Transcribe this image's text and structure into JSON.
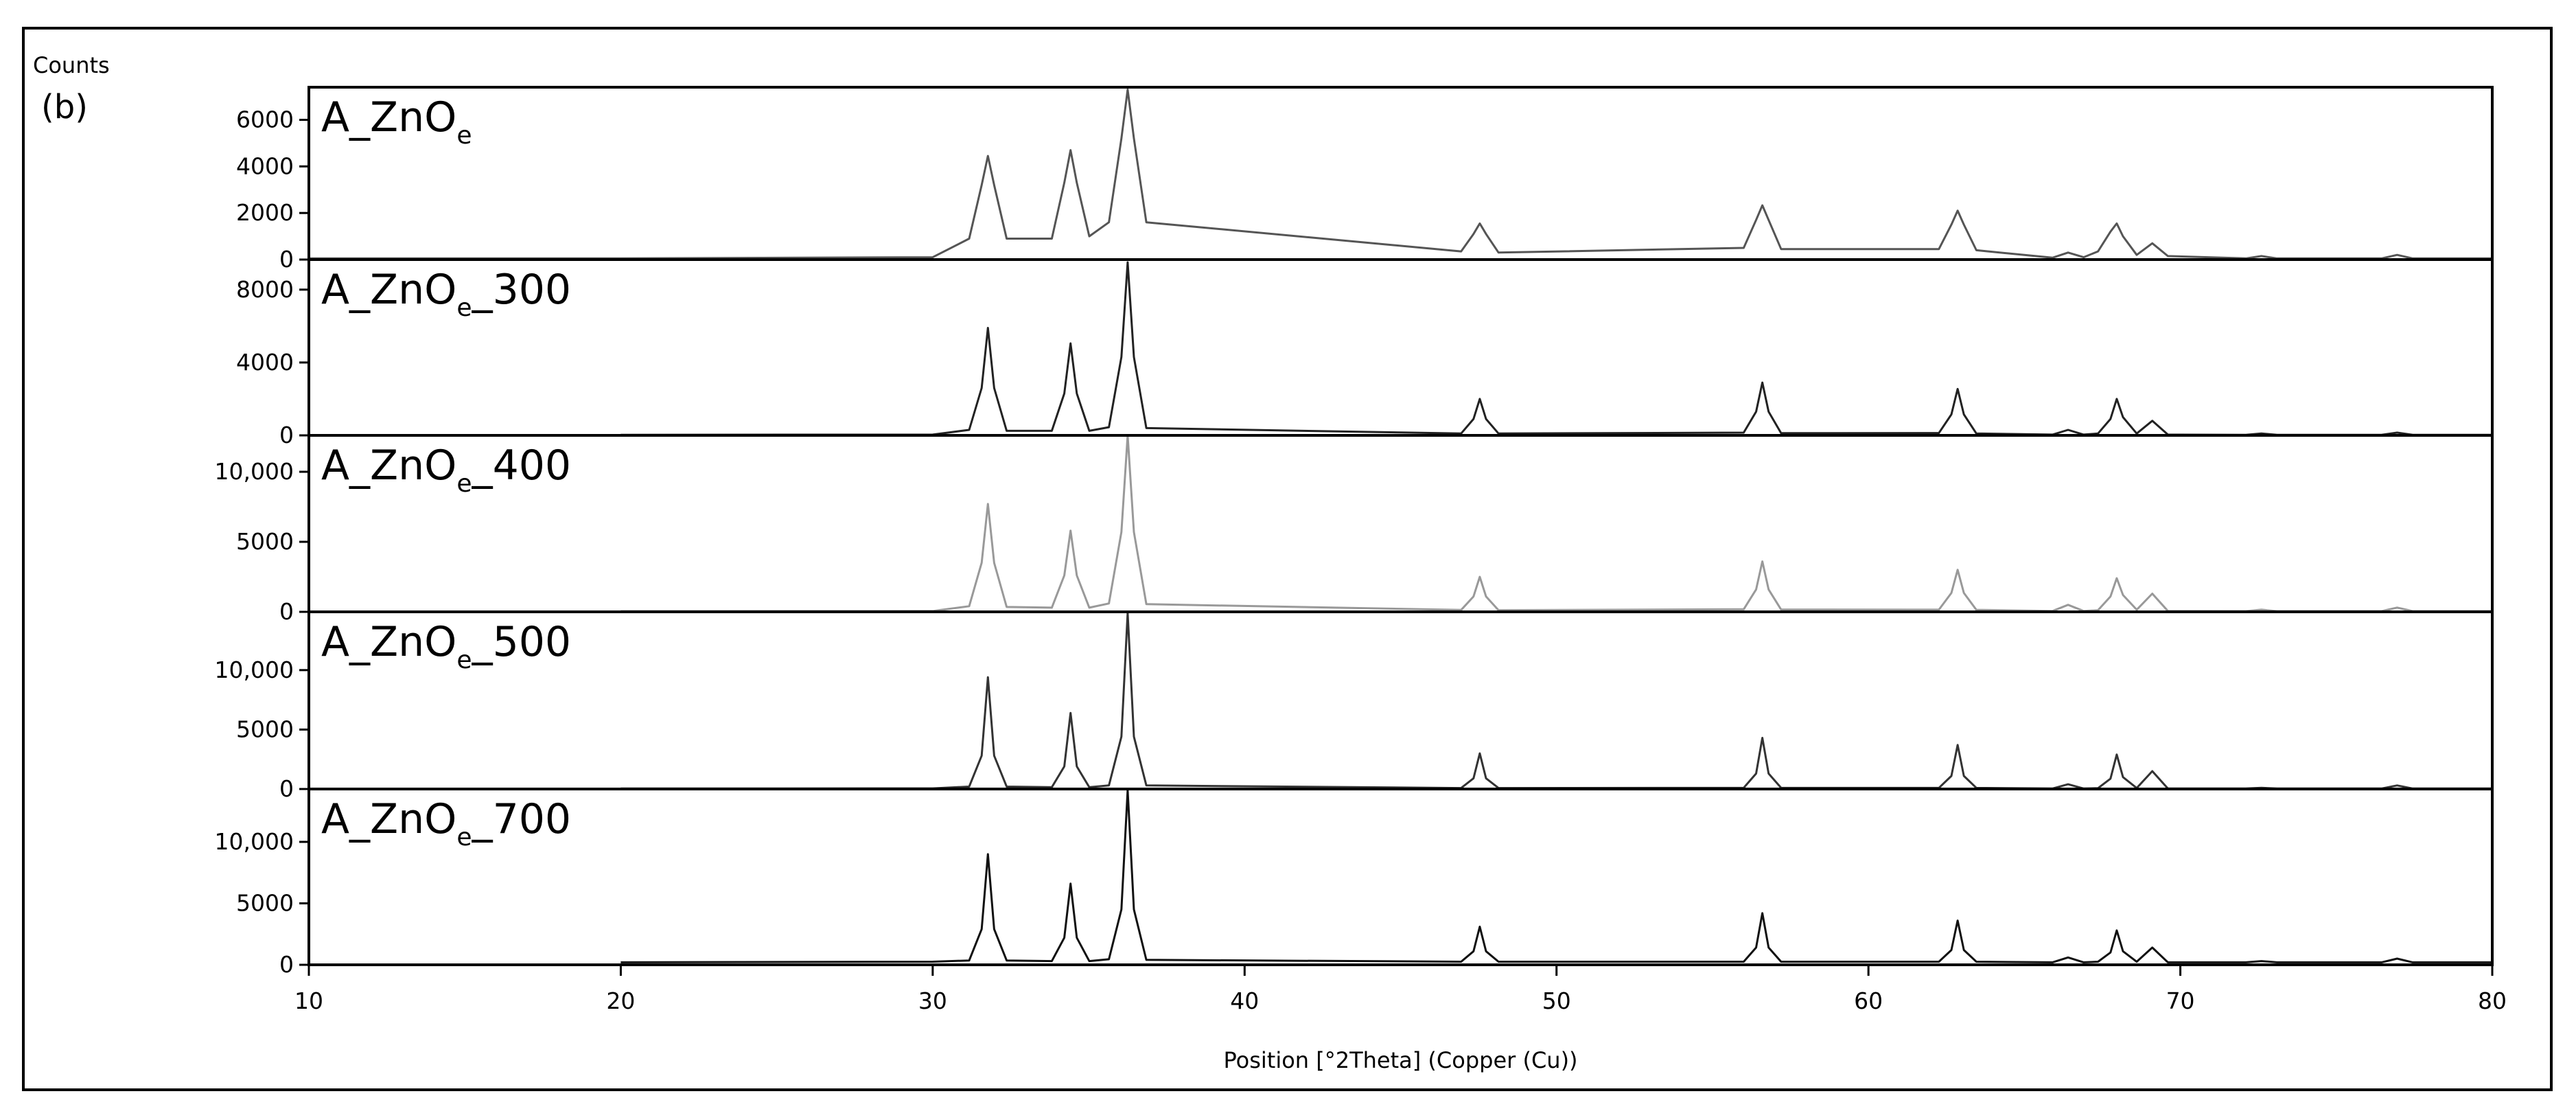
{
  "chart_data": [
    {
      "type": "line",
      "label": "A_ZnO",
      "label_sub": "e",
      "ylabel": "Counts",
      "annotation": "(b)",
      "color": "#555555",
      "xlim": [
        10,
        80
      ],
      "ylim": [
        0,
        7400
      ],
      "yticks": [
        0,
        2000,
        4000,
        6000
      ],
      "x": [
        10,
        20,
        30,
        31.17,
        31.57,
        31.77,
        31.97,
        32.37,
        33.82,
        34.22,
        34.42,
        34.62,
        35.02,
        35.65,
        36.05,
        36.25,
        36.45,
        36.85,
        46.94,
        47.34,
        47.54,
        47.74,
        48.14,
        56.0,
        56.4,
        56.6,
        56.8,
        57.2,
        62.26,
        62.66,
        62.86,
        63.06,
        63.46,
        65.9,
        66.4,
        66.9,
        67.36,
        67.76,
        67.96,
        68.16,
        68.6,
        69.1,
        69.6,
        72.1,
        72.6,
        73.1,
        76.45,
        76.95,
        77.45,
        80
      ],
      "values": [
        50,
        50,
        100,
        900,
        3200,
        4450,
        3200,
        900,
        900,
        3300,
        4700,
        3300,
        1000,
        1600,
        5200,
        7300,
        5200,
        1600,
        350,
        1100,
        1550,
        1100,
        300,
        500,
        1700,
        2330,
        1700,
        450,
        450,
        1500,
        2100,
        1500,
        400,
        80,
        300,
        100,
        350,
        1200,
        1550,
        1000,
        200,
        700,
        150,
        50,
        150,
        50,
        50,
        200,
        50,
        50
      ]
    },
    {
      "type": "line",
      "label": "A_ZnO",
      "label_sub": "e",
      "label_suffix": "_300",
      "color": "#222222",
      "xlim": [
        10,
        80
      ],
      "ylim": [
        0,
        9650
      ],
      "yticks": [
        0,
        4000,
        8000
      ],
      "x": [
        20,
        30,
        31.17,
        31.57,
        31.77,
        31.97,
        32.37,
        33.82,
        34.22,
        34.42,
        34.62,
        35.02,
        35.65,
        36.05,
        36.25,
        36.45,
        36.85,
        46.94,
        47.34,
        47.54,
        47.74,
        48.14,
        56.0,
        56.4,
        56.6,
        56.8,
        57.2,
        62.26,
        62.66,
        62.86,
        63.06,
        63.46,
        65.9,
        66.4,
        66.9,
        67.36,
        67.76,
        67.96,
        68.16,
        68.6,
        69.1,
        69.6,
        72.1,
        72.6,
        73.1,
        76.45,
        76.95,
        77.45,
        80
      ],
      "values": [
        30,
        40,
        300,
        2600,
        5900,
        2600,
        250,
        250,
        2300,
        5050,
        2300,
        250,
        450,
        4300,
        9500,
        4300,
        400,
        100,
        900,
        2000,
        900,
        100,
        150,
        1300,
        2900,
        1300,
        120,
        130,
        1150,
        2550,
        1150,
        100,
        40,
        300,
        40,
        100,
        900,
        2000,
        1000,
        100,
        800,
        40,
        30,
        100,
        30,
        30,
        150,
        30,
        30
      ]
    },
    {
      "type": "line",
      "label": "A_ZnO",
      "label_sub": "e",
      "label_suffix": "_400",
      "color": "#999999",
      "xlim": [
        10,
        80
      ],
      "ylim": [
        0,
        12600
      ],
      "yticks": [
        0,
        5000,
        {
          "value": 10000,
          "label": "10,000"
        }
      ],
      "x": [
        20,
        30,
        31.17,
        31.57,
        31.77,
        31.97,
        32.37,
        33.82,
        34.22,
        34.42,
        34.62,
        35.02,
        35.65,
        36.05,
        36.25,
        36.45,
        36.85,
        46.94,
        47.34,
        47.54,
        47.74,
        48.14,
        56.0,
        56.4,
        56.6,
        56.8,
        57.2,
        62.26,
        62.66,
        62.86,
        63.06,
        63.46,
        65.9,
        66.4,
        66.9,
        67.36,
        67.76,
        67.96,
        68.16,
        68.6,
        69.1,
        69.6,
        72.1,
        72.6,
        73.1,
        76.45,
        76.95,
        77.45,
        80
      ],
      "values": [
        50,
        60,
        400,
        3500,
        7700,
        3500,
        350,
        300,
        2600,
        5800,
        2600,
        300,
        600,
        5700,
        12600,
        5700,
        550,
        130,
        1100,
        2500,
        1100,
        120,
        180,
        1600,
        3600,
        1600,
        160,
        150,
        1350,
        3000,
        1350,
        140,
        60,
        500,
        60,
        120,
        1100,
        2400,
        1200,
        150,
        1300,
        60,
        50,
        150,
        50,
        50,
        300,
        50,
        50
      ]
    },
    {
      "type": "line",
      "label": "A_ZnO",
      "label_sub": "e",
      "label_suffix": "_500",
      "color": "#333333",
      "xlim": [
        10,
        80
      ],
      "ylim": [
        0,
        14900
      ],
      "yticks": [
        0,
        5000,
        {
          "value": 10000,
          "label": "10,000"
        }
      ],
      "x": [
        20,
        30,
        31.17,
        31.57,
        31.77,
        31.97,
        32.37,
        33.82,
        34.22,
        34.42,
        34.62,
        35.02,
        35.65,
        36.05,
        36.25,
        36.45,
        36.85,
        46.94,
        47.34,
        47.54,
        47.74,
        48.14,
        56.0,
        56.4,
        56.6,
        56.8,
        57.2,
        62.26,
        62.66,
        62.86,
        63.06,
        63.46,
        65.9,
        66.4,
        66.9,
        67.36,
        67.76,
        67.96,
        68.16,
        68.6,
        69.1,
        69.6,
        72.1,
        72.6,
        73.1,
        76.45,
        76.95,
        77.45,
        80
      ],
      "values": [
        40,
        50,
        200,
        2800,
        9400,
        2800,
        200,
        150,
        1900,
        6400,
        1900,
        150,
        300,
        4400,
        14800,
        4400,
        300,
        80,
        900,
        3000,
        900,
        80,
        100,
        1300,
        4300,
        1300,
        100,
        90,
        1100,
        3700,
        1100,
        90,
        40,
        400,
        40,
        70,
        870,
        2900,
        1000,
        80,
        1500,
        40,
        40,
        100,
        40,
        40,
        300,
        40,
        40
      ]
    },
    {
      "type": "line",
      "label": "A_ZnO",
      "label_sub": "e",
      "label_suffix": "_700",
      "color": "#111111",
      "xlabel": "Position [°2Theta] (Copper (Cu))",
      "xlim": [
        10,
        80
      ],
      "xticks": [
        10,
        20,
        30,
        40,
        50,
        60,
        70,
        80
      ],
      "ylim": [
        0,
        14300
      ],
      "yticks": [
        0,
        5000,
        {
          "value": 10000,
          "label": "10,000"
        }
      ],
      "x": [
        20,
        30,
        31.17,
        31.57,
        31.77,
        31.97,
        32.37,
        33.82,
        34.22,
        34.42,
        34.62,
        35.02,
        35.65,
        36.05,
        36.25,
        36.45,
        36.85,
        46.94,
        47.34,
        47.54,
        47.74,
        48.14,
        56.0,
        56.4,
        56.6,
        56.8,
        57.2,
        62.26,
        62.66,
        62.86,
        63.06,
        63.46,
        65.9,
        66.4,
        66.9,
        67.36,
        67.76,
        67.96,
        68.16,
        68.6,
        69.1,
        69.6,
        72.1,
        72.6,
        73.1,
        76.45,
        76.95,
        77.45,
        80
      ],
      "values": [
        200,
        250,
        350,
        2900,
        9000,
        2900,
        350,
        300,
        2200,
        6600,
        2200,
        300,
        450,
        4500,
        14200,
        4500,
        400,
        250,
        1100,
        3100,
        1100,
        250,
        250,
        1400,
        4200,
        1400,
        250,
        250,
        1200,
        3600,
        1200,
        250,
        200,
        600,
        200,
        250,
        1000,
        2800,
        1100,
        250,
        1400,
        200,
        200,
        300,
        200,
        200,
        500,
        200,
        200
      ]
    }
  ]
}
